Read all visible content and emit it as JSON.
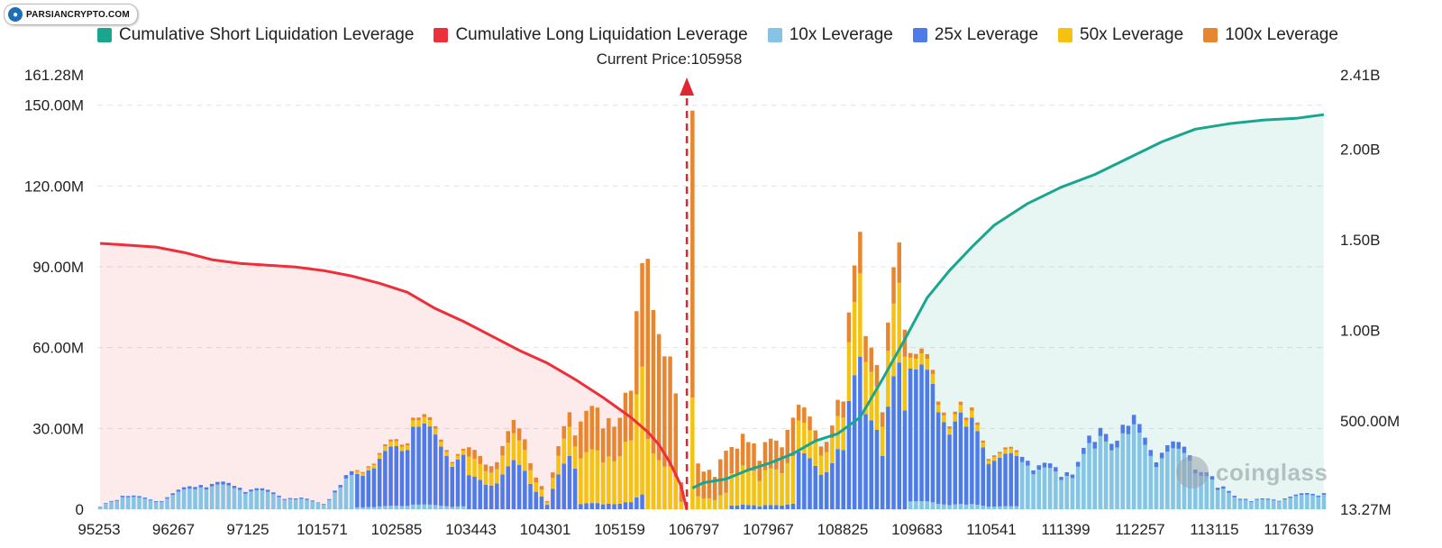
{
  "watermark": {
    "site": "PARSIANCRYPTO.COM",
    "brand": "coinglass"
  },
  "current_price_label": "Current Price:105958",
  "legend": [
    {
      "label": "Cumulative Short Liquidation Leverage",
      "color": "#1aa58e"
    },
    {
      "label": "Cumulative Long Liquidation Leverage",
      "color": "#ec2f3b"
    },
    {
      "label": "10x Leverage",
      "color": "#86c4e6"
    },
    {
      "label": "25x Leverage",
      "color": "#4f7be8"
    },
    {
      "label": "50x Leverage",
      "color": "#f5c211"
    },
    {
      "label": "100x Leverage",
      "color": "#e8862f"
    }
  ],
  "chart_data": {
    "type": "bar",
    "current_price": 105958,
    "x_tick_labels": [
      "95253",
      "96267",
      "97125",
      "101571",
      "102585",
      "103443",
      "104301",
      "105159",
      "106797",
      "107967",
      "108825",
      "109683",
      "110541",
      "111399",
      "112257",
      "113115",
      "117639"
    ],
    "y_left": {
      "ticks": [
        "0",
        "30.00M",
        "60.00M",
        "90.00M",
        "120.00M",
        "150.00M"
      ],
      "max_label": "161.28M",
      "range": [
        0,
        161280000
      ]
    },
    "y_right": {
      "ticks": [
        "13.27M",
        "500.00M",
        "1.00B",
        "1.50B",
        "2.00B"
      ],
      "max_label": "2.41B",
      "range": [
        13270000,
        2410000000
      ]
    },
    "bar_count": 220,
    "current_price_index": 105,
    "bar_stacks_order": [
      "10x Leverage",
      "25x Leverage",
      "50x Leverage",
      "100x Leverage"
    ],
    "bar_samples_totals_M": [
      [
        0,
        1
      ],
      [
        4,
        5
      ],
      [
        10,
        3
      ],
      [
        18,
        9
      ],
      [
        25,
        8
      ],
      [
        35,
        4
      ],
      [
        40,
        2
      ],
      [
        43,
        9
      ],
      [
        48,
        16
      ],
      [
        54,
        24
      ],
      [
        56,
        34
      ],
      [
        62,
        22
      ],
      [
        70,
        16
      ],
      [
        75,
        30
      ],
      [
        80,
        3
      ],
      [
        84,
        36
      ],
      [
        90,
        30
      ],
      [
        95,
        44
      ],
      [
        98,
        93
      ],
      [
        100,
        65
      ],
      [
        103,
        43
      ],
      [
        104,
        10
      ],
      [
        105,
        0
      ],
      [
        106,
        148
      ],
      [
        107,
        17
      ],
      [
        110,
        12
      ],
      [
        115,
        28
      ],
      [
        118,
        18
      ],
      [
        124,
        34
      ],
      [
        130,
        25
      ],
      [
        133,
        40
      ],
      [
        136,
        103
      ],
      [
        138,
        60
      ],
      [
        140,
        36
      ],
      [
        143,
        99
      ],
      [
        145,
        58
      ],
      [
        150,
        40
      ],
      [
        155,
        34
      ],
      [
        160,
        20
      ],
      [
        166,
        18
      ],
      [
        172,
        12
      ],
      [
        178,
        25
      ],
      [
        184,
        31
      ],
      [
        188,
        22
      ],
      [
        195,
        20
      ],
      [
        200,
        8
      ],
      [
        206,
        3
      ],
      [
        212,
        4
      ],
      [
        219,
        6
      ]
    ],
    "cumulative_long_B": [
      [
        0,
        1.48
      ],
      [
        5,
        1.47
      ],
      [
        10,
        1.46
      ],
      [
        15,
        1.43
      ],
      [
        20,
        1.39
      ],
      [
        25,
        1.37
      ],
      [
        30,
        1.36
      ],
      [
        35,
        1.35
      ],
      [
        40,
        1.33
      ],
      [
        45,
        1.3
      ],
      [
        50,
        1.26
      ],
      [
        55,
        1.21
      ],
      [
        60,
        1.12
      ],
      [
        65,
        1.05
      ],
      [
        70,
        0.97
      ],
      [
        75,
        0.89
      ],
      [
        80,
        0.82
      ],
      [
        85,
        0.73
      ],
      [
        90,
        0.63
      ],
      [
        95,
        0.52
      ],
      [
        98,
        0.44
      ],
      [
        100,
        0.37
      ],
      [
        102,
        0.27
      ],
      [
        104,
        0.14
      ],
      [
        105,
        0.01
      ]
    ],
    "cumulative_short_B": [
      [
        106,
        0.13
      ],
      [
        108,
        0.16
      ],
      [
        112,
        0.18
      ],
      [
        116,
        0.23
      ],
      [
        120,
        0.27
      ],
      [
        124,
        0.32
      ],
      [
        128,
        0.39
      ],
      [
        132,
        0.43
      ],
      [
        136,
        0.52
      ],
      [
        140,
        0.73
      ],
      [
        144,
        0.95
      ],
      [
        148,
        1.18
      ],
      [
        152,
        1.33
      ],
      [
        156,
        1.46
      ],
      [
        160,
        1.58
      ],
      [
        166,
        1.7
      ],
      [
        172,
        1.79
      ],
      [
        178,
        1.86
      ],
      [
        184,
        1.95
      ],
      [
        190,
        2.04
      ],
      [
        196,
        2.11
      ],
      [
        202,
        2.14
      ],
      [
        208,
        2.16
      ],
      [
        214,
        2.17
      ],
      [
        219,
        2.19
      ]
    ]
  }
}
